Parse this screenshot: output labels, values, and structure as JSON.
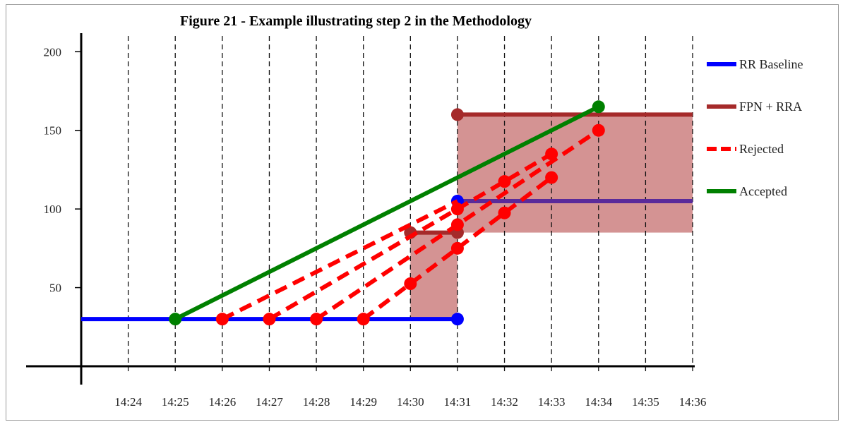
{
  "chart_data": {
    "type": "line",
    "title": "Figure 21 - Example illustrating step 2 in the Methodology",
    "xlabel": "",
    "ylabel": "",
    "x_ticks": [
      "14:24",
      "14:25",
      "14:26",
      "14:27",
      "14:28",
      "14:29",
      "14:30",
      "14:31",
      "14:32",
      "14:33",
      "14:34",
      "14:35",
      "14:36"
    ],
    "xlim": [
      "14:23",
      "14:36"
    ],
    "y_ticks": [
      50,
      100,
      150,
      200
    ],
    "ylim": [
      0,
      210
    ],
    "grid": "vertical dashed",
    "legend_position": "right",
    "regions": [
      {
        "x_start": "14:30",
        "x_end": "14:31",
        "y_bottom": 30,
        "y_top": 85,
        "color": "#b03a3a"
      },
      {
        "x_start": "14:31",
        "x_end": "14:36",
        "y_bottom": 85,
        "y_top": 160,
        "color": "#b03a3a"
      }
    ],
    "series": [
      {
        "name": "RR Baseline",
        "color": "#0000ff",
        "style": "solid",
        "segments": [
          {
            "points": [
              [
                "14:23",
                30
              ],
              [
                "14:31",
                30
              ]
            ],
            "markers": [
              "14:31"
            ]
          },
          {
            "points": [
              [
                "14:31",
                105
              ],
              [
                "14:36",
                105
              ]
            ],
            "markers": [
              "14:31"
            ],
            "color": "#5a2a9a"
          }
        ]
      },
      {
        "name": "FPN + RRA",
        "color": "#a52a2a",
        "style": "solid",
        "segments": [
          {
            "points": [
              [
                "14:30",
                85
              ],
              [
                "14:31",
                85
              ]
            ],
            "markers": [
              "14:30",
              "14:31"
            ]
          },
          {
            "points": [
              [
                "14:31",
                160
              ],
              [
                "14:36",
                160
              ]
            ],
            "markers": [
              "14:31"
            ]
          }
        ]
      },
      {
        "name": "Rejected",
        "color": "#ff0000",
        "style": "dashed",
        "segments": [
          {
            "points": [
              [
                "14:26",
                30
              ],
              [
                "14:31",
                105
              ]
            ],
            "markers": [
              "14:26"
            ]
          },
          {
            "points": [
              [
                "14:27",
                30
              ],
              [
                "14:33",
                135
              ]
            ],
            "markers": [
              "14:27",
              "14:31",
              "14:32",
              "14:33"
            ]
          },
          {
            "points": [
              [
                "14:28",
                30
              ],
              [
                "14:34",
                150
              ]
            ],
            "markers": [
              "14:28",
              "14:31",
              "14:34"
            ]
          },
          {
            "points": [
              [
                "14:29",
                30
              ],
              [
                "14:33",
                120
              ]
            ],
            "markers": [
              "14:29",
              "14:30",
              "14:31",
              "14:32",
              "14:33"
            ]
          }
        ]
      },
      {
        "name": "Accepted",
        "color": "#008000",
        "style": "solid",
        "segments": [
          {
            "points": [
              [
                "14:25",
                30
              ],
              [
                "14:34",
                165
              ]
            ],
            "markers": [
              "14:25",
              "14:34"
            ]
          }
        ]
      }
    ]
  }
}
